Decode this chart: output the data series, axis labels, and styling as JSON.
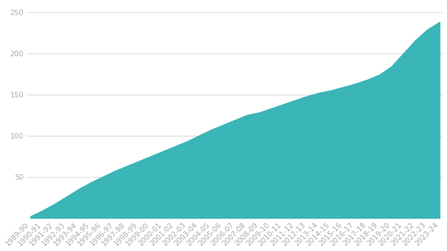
{
  "years": [
    "1989-90",
    "1990-91",
    "1991-92",
    "1992-93",
    "1993-94",
    "1994-95",
    "1995-96",
    "1996-97",
    "1997-98",
    "1998-99",
    "1999-00",
    "2000-01",
    "2001-02",
    "2002-03",
    "2003-04",
    "2004-05",
    "2005-06",
    "2006-07",
    "2007-08",
    "2008-09",
    "2009-10",
    "2010-11",
    "2011-12",
    "2012-13",
    "2013-14",
    "2014-15",
    "2015-16",
    "2016-17",
    "2017-18",
    "2018-19",
    "2019-20",
    "2020-21",
    "2021-22",
    "2022-23",
    "2023-24"
  ],
  "values": [
    2,
    9,
    17,
    26,
    35,
    43,
    50,
    57,
    63,
    69,
    75,
    81,
    87,
    93,
    100,
    107,
    113,
    119,
    125,
    128,
    133,
    138,
    143,
    148,
    152,
    155,
    159,
    163,
    168,
    174,
    184,
    200,
    216,
    229,
    238
  ],
  "fill_color": "#3ab5b8",
  "line_color": "#3ab5b8",
  "bg_color": "#ffffff",
  "grid_color": "#d8d8d8",
  "tick_label_color": "#aaaaaa",
  "yticks": [
    0,
    50,
    100,
    150,
    200,
    250
  ],
  "ylim": [
    0,
    260
  ],
  "tick_fontsize": 7.5,
  "xlim_left": -0.3,
  "xlim_right": 34.3
}
